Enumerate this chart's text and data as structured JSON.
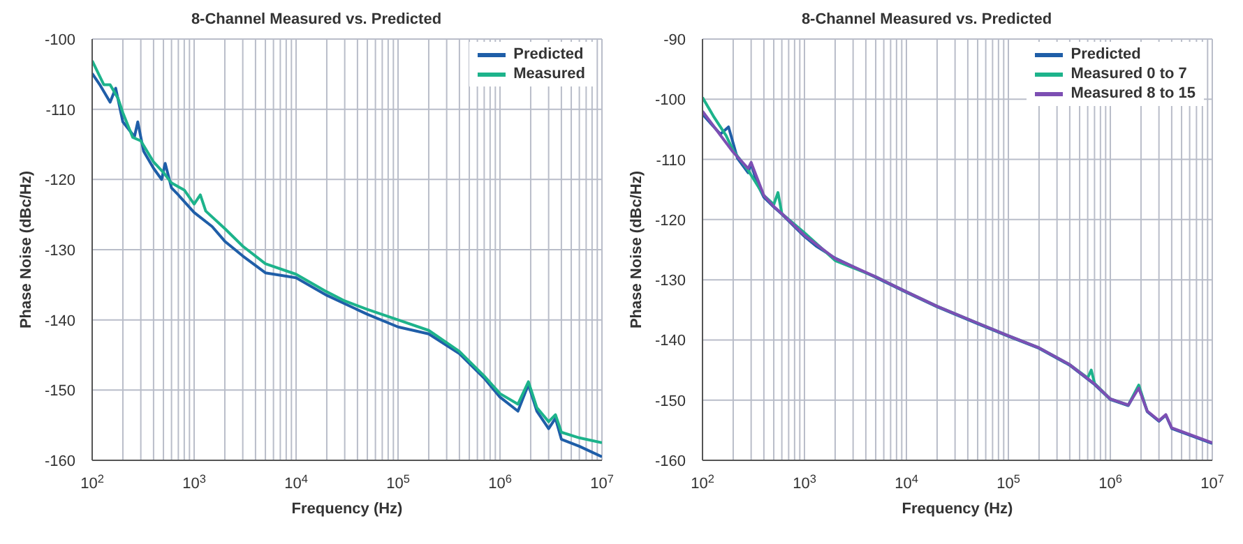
{
  "chart_data": [
    {
      "type": "line",
      "title": "8-Channel Measured vs. Predicted",
      "xlabel": "Frequency (Hz)",
      "ylabel": "Phase Noise (dBc/Hz)",
      "log": "x",
      "grid": true,
      "legend": "top right",
      "line_style": "solid",
      "marker": "none",
      "xlim": [
        100,
        10000000
      ],
      "ylim": [
        -160,
        -100
      ],
      "xticks": [
        {
          "value": 100,
          "label": "10$^{2}$"
        },
        {
          "value": 200,
          "label": null
        },
        {
          "value": 300,
          "label": null
        },
        {
          "value": 400,
          "label": null
        },
        {
          "value": 500,
          "label": null
        },
        {
          "value": 600,
          "label": null
        },
        {
          "value": 700,
          "label": null
        },
        {
          "value": 800,
          "label": null
        },
        {
          "value": 900,
          "label": null
        },
        {
          "value": 1000,
          "label": "10$^{3}$"
        },
        {
          "value": 2000,
          "label": null
        },
        {
          "value": 3000,
          "label": null
        },
        {
          "value": 4000,
          "label": null
        },
        {
          "value": 5000,
          "label": null
        },
        {
          "value": 6000,
          "label": null
        },
        {
          "value": 7000,
          "label": null
        },
        {
          "value": 8000,
          "label": null
        },
        {
          "value": 9000,
          "label": null
        },
        {
          "value": 10000,
          "label": "10$^{4}$"
        },
        {
          "value": 20000,
          "label": null
        },
        {
          "value": 30000,
          "label": null
        },
        {
          "value": 40000,
          "label": null
        },
        {
          "value": 50000,
          "label": null
        },
        {
          "value": 60000,
          "label": null
        },
        {
          "value": 70000,
          "label": null
        },
        {
          "value": 80000,
          "label": null
        },
        {
          "value": 90000,
          "label": null
        },
        {
          "value": 100000,
          "label": "10$^{5}$"
        },
        {
          "value": 200000,
          "label": null
        },
        {
          "value": 300000,
          "label": null
        },
        {
          "value": 400000,
          "label": null
        },
        {
          "value": 500000,
          "label": null
        },
        {
          "value": 600000,
          "label": null
        },
        {
          "value": 700000,
          "label": null
        },
        {
          "value": 800000,
          "label": null
        },
        {
          "value": 900000,
          "label": null
        },
        {
          "value": 1000000,
          "label": "10$^{6}$"
        },
        {
          "value": 2000000,
          "label": null
        },
        {
          "value": 3000000,
          "label": null
        },
        {
          "value": 4000000,
          "label": null
        },
        {
          "value": 5000000,
          "label": null
        },
        {
          "value": 6000000,
          "label": null
        },
        {
          "value": 7000000,
          "label": null
        },
        {
          "value": 8000000,
          "label": null
        },
        {
          "value": 9000000,
          "label": null
        },
        {
          "value": 10000000,
          "label": "10$^{7}$"
        }
      ],
      "yticks": [
        -160,
        -150,
        -140,
        -130,
        -120,
        -110,
        -100
      ],
      "series": [
        {
          "name": "Predicted",
          "color": "#1f5ea8",
          "x": [
            100,
            120,
            150,
            170,
            200,
            260,
            280,
            320,
            400,
            480,
            520,
            600,
            700,
            1000,
            1500,
            2000,
            3000,
            5000,
            10000,
            20000,
            50000,
            100000,
            200000,
            400000,
            700000,
            1000000,
            1500000,
            1900000,
            2300000,
            3000000,
            3500000,
            4000000,
            6000000,
            10000000
          ],
          "values": [
            -104.9,
            -106.6,
            -109,
            -107,
            -111.8,
            -113.9,
            -111.8,
            -116,
            -118.4,
            -120,
            -117.7,
            -121.2,
            -122.2,
            -124.7,
            -126.7,
            -128.8,
            -130.9,
            -133.3,
            -134,
            -136.5,
            -139.2,
            -141,
            -142,
            -144.8,
            -148.3,
            -151,
            -153,
            -149.2,
            -153,
            -155.5,
            -154,
            -157,
            -158,
            -159.5
          ]
        },
        {
          "name": "Measured",
          "color": "#1db38b",
          "x": [
            100,
            130,
            150,
            180,
            200,
            250,
            300,
            330,
            400,
            500,
            600,
            800,
            1000,
            1150,
            1300,
            2000,
            3000,
            5000,
            10000,
            20000,
            30000,
            50000,
            100000,
            200000,
            400000,
            700000,
            1000000,
            1500000,
            1900000,
            2300000,
            3000000,
            3500000,
            4000000,
            6000000,
            10000000
          ],
          "values": [
            -103.1,
            -106.5,
            -106.5,
            -108.5,
            -110.5,
            -114,
            -114.5,
            -115.5,
            -117.5,
            -119,
            -120.5,
            -121.5,
            -123.5,
            -122.2,
            -124.5,
            -127,
            -129.5,
            -132,
            -133.5,
            -136,
            -137.3,
            -138.5,
            -140,
            -141.5,
            -144.5,
            -148,
            -150.5,
            -152,
            -148.8,
            -152.5,
            -154.5,
            -153.5,
            -156,
            -156.8,
            -157.5
          ]
        }
      ]
    },
    {
      "type": "line",
      "title": "8-Channel Measured vs. Predicted",
      "xlabel": "Frequency (Hz)",
      "ylabel": "Phase Noise (dBc/Hz)",
      "log": "x",
      "grid": true,
      "legend": "top right",
      "line_style": "solid",
      "marker": "none",
      "xlim": [
        100,
        10000000
      ],
      "ylim": [
        -160,
        -90
      ],
      "xticks": [
        {
          "value": 100,
          "label": "10$^{2}$"
        },
        {
          "value": 200,
          "label": null
        },
        {
          "value": 300,
          "label": null
        },
        {
          "value": 400,
          "label": null
        },
        {
          "value": 500,
          "label": null
        },
        {
          "value": 600,
          "label": null
        },
        {
          "value": 700,
          "label": null
        },
        {
          "value": 800,
          "label": null
        },
        {
          "value": 900,
          "label": null
        },
        {
          "value": 1000,
          "label": "10$^{3}$"
        },
        {
          "value": 2000,
          "label": null
        },
        {
          "value": 3000,
          "label": null
        },
        {
          "value": 4000,
          "label": null
        },
        {
          "value": 5000,
          "label": null
        },
        {
          "value": 6000,
          "label": null
        },
        {
          "value": 7000,
          "label": null
        },
        {
          "value": 8000,
          "label": null
        },
        {
          "value": 9000,
          "label": null
        },
        {
          "value": 10000,
          "label": "10$^{4}$"
        },
        {
          "value": 20000,
          "label": null
        },
        {
          "value": 30000,
          "label": null
        },
        {
          "value": 40000,
          "label": null
        },
        {
          "value": 50000,
          "label": null
        },
        {
          "value": 60000,
          "label": null
        },
        {
          "value": 70000,
          "label": null
        },
        {
          "value": 80000,
          "label": null
        },
        {
          "value": 90000,
          "label": null
        },
        {
          "value": 100000,
          "label": "10$^{5}$"
        },
        {
          "value": 200000,
          "label": null
        },
        {
          "value": 300000,
          "label": null
        },
        {
          "value": 400000,
          "label": null
        },
        {
          "value": 500000,
          "label": null
        },
        {
          "value": 600000,
          "label": null
        },
        {
          "value": 700000,
          "label": null
        },
        {
          "value": 800000,
          "label": null
        },
        {
          "value": 900000,
          "label": null
        },
        {
          "value": 1000000,
          "label": "10$^{6}$"
        },
        {
          "value": 2000000,
          "label": null
        },
        {
          "value": 3000000,
          "label": null
        },
        {
          "value": 4000000,
          "label": null
        },
        {
          "value": 5000000,
          "label": null
        },
        {
          "value": 6000000,
          "label": null
        },
        {
          "value": 7000000,
          "label": null
        },
        {
          "value": 8000000,
          "label": null
        },
        {
          "value": 9000000,
          "label": null
        },
        {
          "value": 10000000,
          "label": "10$^{7}$"
        }
      ],
      "yticks": [
        -160,
        -150,
        -140,
        -130,
        -120,
        -110,
        -100,
        -90
      ],
      "series": [
        {
          "name": "Predicted",
          "color": "#1f5ea8",
          "x": [
            100,
            150,
            180,
            220,
            280,
            300,
            340,
            400,
            500,
            600,
            1000,
            1300,
            2000,
            5000,
            10000,
            20000,
            50000,
            100000,
            200000,
            400000,
            700000,
            1000000,
            1500000,
            1900000,
            2300000,
            3000000,
            3500000,
            4000000,
            6000000,
            10000000
          ],
          "values": [
            -102.5,
            -105.8,
            -104.6,
            -109.8,
            -112.2,
            -110.6,
            -113.9,
            -116.3,
            -117.9,
            -119.1,
            -122.8,
            -124.4,
            -126.4,
            -129.6,
            -132.1,
            -134.5,
            -137.3,
            -139.4,
            -141.4,
            -144.2,
            -147.4,
            -149.9,
            -150.9,
            -147.8,
            -151.9,
            -153.5,
            -152.5,
            -154.7,
            -155.8,
            -157.2
          ]
        },
        {
          "name": "Measured 0 to 7",
          "color": "#1db38b",
          "x": [
            100,
            130,
            170,
            200,
            280,
            400,
            500,
            550,
            600,
            1000,
            2000,
            5000,
            10000,
            20000,
            50000,
            100000,
            200000,
            400000,
            600000,
            650000,
            700000,
            1000000,
            1500000,
            1900000,
            2300000
          ],
          "values": [
            -99.7,
            -103,
            -106,
            -108.5,
            -111.8,
            -116,
            -117.5,
            -115.5,
            -119,
            -122.2,
            -126.8,
            -129.5,
            -132,
            -134.4,
            -137.2,
            -139.3,
            -141.3,
            -144.1,
            -146.3,
            -145,
            -147.2,
            -149.8,
            -150.8,
            -147.5,
            -151.8
          ]
        },
        {
          "name": "Measured 8 to 15",
          "color": "#7d4fb3",
          "x": [
            100,
            150,
            200,
            280,
            300,
            400,
            500,
            600,
            1000,
            2000,
            5000,
            10000,
            20000,
            50000,
            100000,
            200000,
            400000,
            700000,
            1000000,
            1500000,
            1900000,
            2300000,
            3000000,
            3500000,
            4000000,
            6000000,
            10000000
          ],
          "values": [
            -102,
            -106,
            -108.8,
            -111.5,
            -110.5,
            -116,
            -117.8,
            -119,
            -122.6,
            -126.5,
            -129.5,
            -132,
            -134.4,
            -137.2,
            -139.3,
            -141.3,
            -144.1,
            -147.3,
            -149.8,
            -150.8,
            -148,
            -151.8,
            -153.4,
            -152.4,
            -154.6,
            -155.7,
            -157.1
          ]
        }
      ]
    }
  ]
}
